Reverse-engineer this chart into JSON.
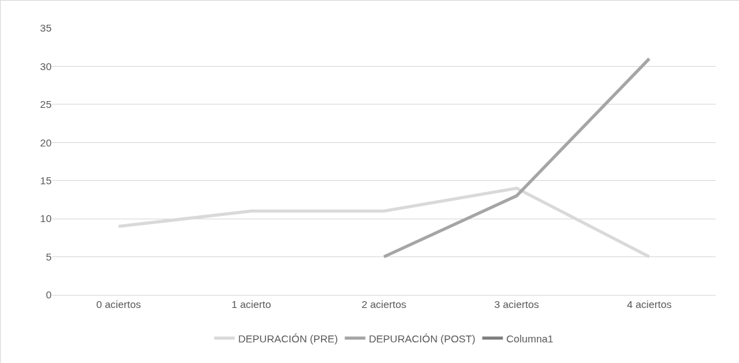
{
  "chart_data": {
    "type": "line",
    "categories": [
      "0 aciertos",
      "1 acierto",
      "2 aciertos",
      "3 aciertos",
      "4 aciertos"
    ],
    "series": [
      {
        "name": "DEPURACIÓN (PRE)",
        "color": "#d9d9d9",
        "values": [
          9,
          11,
          11,
          14,
          5
        ]
      },
      {
        "name": "DEPURACIÓN (POST)",
        "color": "#a5a5a5",
        "values": [
          null,
          null,
          5,
          13,
          31
        ]
      },
      {
        "name": "Columna1",
        "color": "#7f7f7f",
        "values": [
          null,
          null,
          null,
          null,
          null
        ]
      }
    ],
    "ylim": [
      0,
      35
    ],
    "yticks": [
      0,
      5,
      10,
      15,
      20,
      25,
      30,
      35
    ],
    "grid": "y",
    "legend": "bottom",
    "marker": "none",
    "line_style": "solid"
  }
}
